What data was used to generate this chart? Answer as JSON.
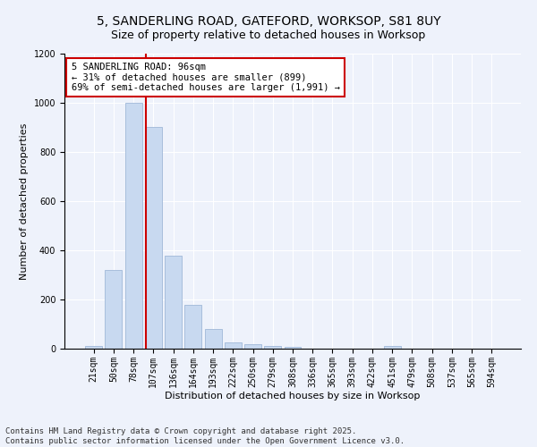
{
  "title_line1": "5, SANDERLING ROAD, GATEFORD, WORKSOP, S81 8UY",
  "title_line2": "Size of property relative to detached houses in Worksop",
  "xlabel": "Distribution of detached houses by size in Worksop",
  "ylabel": "Number of detached properties",
  "categories": [
    "21sqm",
    "50sqm",
    "78sqm",
    "107sqm",
    "136sqm",
    "164sqm",
    "193sqm",
    "222sqm",
    "250sqm",
    "279sqm",
    "308sqm",
    "336sqm",
    "365sqm",
    "393sqm",
    "422sqm",
    "451sqm",
    "479sqm",
    "508sqm",
    "537sqm",
    "565sqm",
    "594sqm"
  ],
  "values": [
    10,
    320,
    1000,
    900,
    380,
    180,
    80,
    25,
    20,
    10,
    8,
    1,
    0,
    0,
    0,
    10,
    0,
    0,
    0,
    0,
    0
  ],
  "bar_color": "#c8d9f0",
  "bar_edge_color": "#a0b8d8",
  "vline_color": "#cc0000",
  "vline_label": "5 SANDERLING ROAD: 96sqm",
  "annotation_line2": "← 31% of detached houses are smaller (899)",
  "annotation_line3": "69% of semi-detached houses are larger (1,991) →",
  "annotation_box_color": "#cc0000",
  "annotation_fill": "#ffffff",
  "ylim": [
    0,
    1200
  ],
  "yticks": [
    0,
    200,
    400,
    600,
    800,
    1000,
    1200
  ],
  "background_color": "#eef2fb",
  "grid_color": "#ffffff",
  "footer_line1": "Contains HM Land Registry data © Crown copyright and database right 2025.",
  "footer_line2": "Contains public sector information licensed under the Open Government Licence v3.0.",
  "title_fontsize": 10,
  "subtitle_fontsize": 9,
  "axis_label_fontsize": 8,
  "tick_fontsize": 7,
  "annotation_fontsize": 7.5,
  "footer_fontsize": 6.5,
  "vline_pos": 2.62
}
